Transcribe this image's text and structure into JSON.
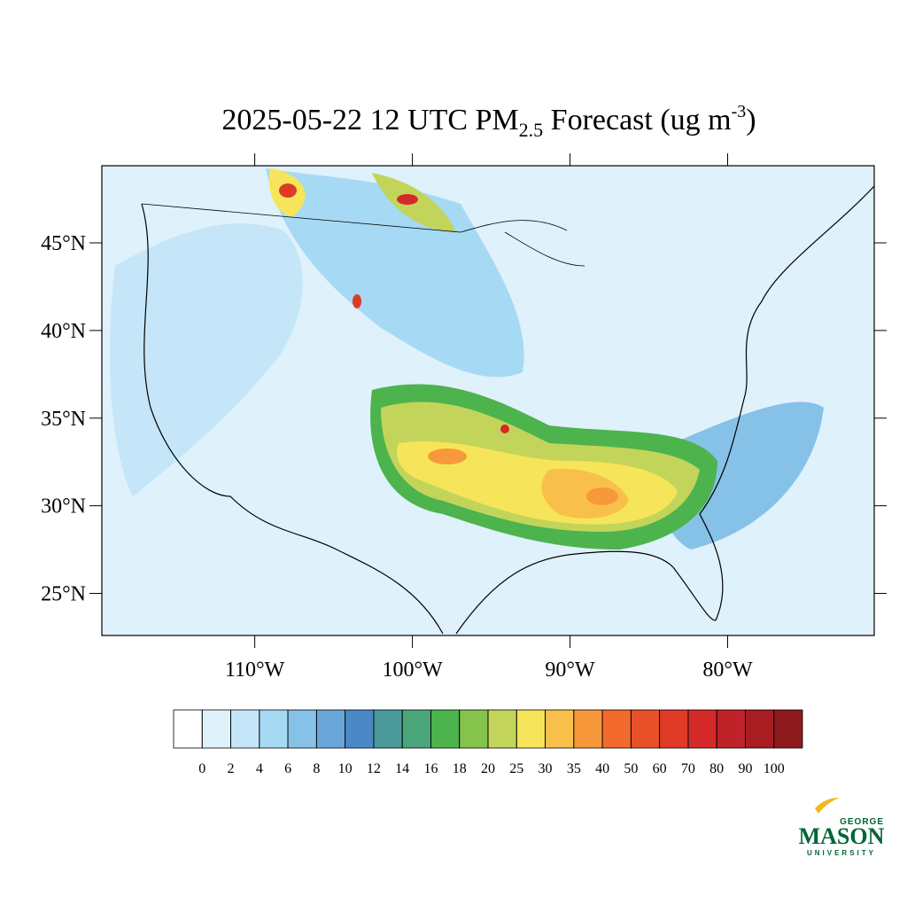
{
  "chart_data": {
    "type": "map",
    "title": {
      "main": "2025-05-22 12 UTC PM",
      "sub": "2.5",
      "rest": " Forecast (ug m",
      "sup": "-3",
      "end": ")"
    },
    "xlim": [
      -119.7,
      -70.7
    ],
    "ylim": [
      22.6,
      49.4
    ],
    "xticks": [
      {
        "value": -110,
        "label": "110°W"
      },
      {
        "value": -100,
        "label": "100°W"
      },
      {
        "value": -90,
        "label": "90°W"
      },
      {
        "value": -80,
        "label": "80°W"
      }
    ],
    "yticks": [
      {
        "value": 25,
        "label": "25°N"
      },
      {
        "value": 30,
        "label": "30°N"
      },
      {
        "value": 35,
        "label": "35°N"
      },
      {
        "value": 40,
        "label": "40°N"
      },
      {
        "value": 45,
        "label": "45°N"
      }
    ],
    "colorbar": {
      "levels": [
        0,
        2,
        4,
        6,
        8,
        10,
        12,
        14,
        16,
        18,
        20,
        25,
        30,
        35,
        40,
        50,
        60,
        70,
        80,
        90,
        100
      ],
      "colors": [
        "#ffffff",
        "#dff1fb",
        "#c4e6f8",
        "#a6d9f4",
        "#86c1e8",
        "#6aa6d9",
        "#4a89c6",
        "#4a9a9a",
        "#4aa67a",
        "#4db34d",
        "#84c44d",
        "#c2d55a",
        "#f6e55a",
        "#f8c04a",
        "#f7993a",
        "#f26a2d",
        "#e8502a",
        "#df3a26",
        "#d62a2a",
        "#c0222a",
        "#a81c22",
        "#8c1a1c"
      ]
    },
    "logo": {
      "top": "GEORGE",
      "main": "MASON",
      "bottom": "UNIVERSITY"
    }
  }
}
